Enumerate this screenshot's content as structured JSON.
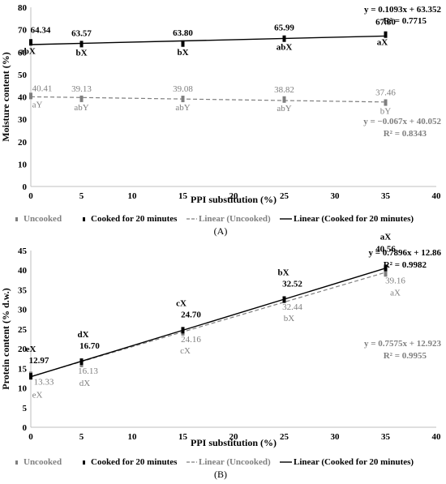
{
  "colors": {
    "uncooked": "#7f7f7f",
    "cooked": "#000000",
    "axis": "#bfbfbf",
    "grid": "#d9d9d9"
  },
  "chart_data": [
    {
      "type": "scatter",
      "panel_label": "(A)",
      "xlabel": "PPI substitution (%)",
      "ylabel": "Moisture content (%)",
      "xlim": [
        0,
        40
      ],
      "ylim": [
        0,
        80
      ],
      "xticks": [
        0,
        5,
        10,
        15,
        20,
        25,
        30,
        35,
        40
      ],
      "yticks": [
        0,
        10,
        20,
        30,
        40,
        50,
        60,
        70,
        80
      ],
      "grid": false,
      "legend_position": "bottom",
      "x": [
        0,
        5,
        15,
        25,
        35
      ],
      "series": [
        {
          "name": "Uncooked",
          "values": [
            40.41,
            39.13,
            39.08,
            38.82,
            37.46
          ],
          "data_labels": [
            "40.41",
            "39.13",
            "39.08",
            "38.82",
            "37.46"
          ],
          "letters": [
            "aY",
            "abY",
            "abY",
            "abY",
            "bY"
          ],
          "trendline_name": "Linear (Uncooked)",
          "trendline": {
            "slope": -0.067,
            "intercept": 40.052
          },
          "equation": "y = −0.067x + 40.052",
          "r2": "R² = 0.8343"
        },
        {
          "name": "Cooked for 20 minutes",
          "values": [
            64.34,
            63.57,
            63.8,
            65.99,
            67.8
          ],
          "data_labels": [
            "64.34",
            "63.57",
            "63.80",
            "65.99",
            "67.80"
          ],
          "letters": [
            "abX",
            "bX",
            "bX",
            "abX",
            "aX"
          ],
          "trendline_name": "Linear (Cooked for 20 minutes)",
          "trendline": {
            "slope": 0.1093,
            "intercept": 63.352
          },
          "equation": "y = 0.1093x + 63.352",
          "r2": "R² = 0.7715"
        }
      ]
    },
    {
      "type": "scatter",
      "panel_label": "(B)",
      "xlabel": "PPI substitution (%)",
      "ylabel": "Protein content (% d.w.)",
      "xlim": [
        0,
        40
      ],
      "ylim": [
        0,
        45
      ],
      "xticks": [
        0,
        5,
        10,
        15,
        20,
        25,
        30,
        35,
        40
      ],
      "yticks": [
        0,
        5,
        10,
        15,
        20,
        25,
        30,
        35,
        40,
        45
      ],
      "grid": false,
      "legend_position": "bottom",
      "x": [
        0,
        5,
        15,
        25,
        35
      ],
      "series": [
        {
          "name": "Uncooked",
          "values": [
            13.33,
            16.13,
            24.16,
            32.44,
            39.16
          ],
          "data_labels": [
            "13.33",
            "16.13",
            "24.16",
            "32.44",
            "39.16"
          ],
          "letters": [
            "eX",
            "dX",
            "cX",
            "bX",
            "aX"
          ],
          "trendline_name": "Linear (Uncooked)",
          "trendline": {
            "slope": 0.7575,
            "intercept": 12.923
          },
          "equation": "y = 0.7575x + 12.923",
          "r2": "R² = 0.9955"
        },
        {
          "name": "Cooked for 20 minutes",
          "values": [
            12.97,
            16.7,
            24.7,
            32.52,
            40.56
          ],
          "data_labels": [
            "12.97",
            "16.70",
            "24.70",
            "32.52",
            "40.56"
          ],
          "letters": [
            "eX",
            "dX",
            "cX",
            "bX",
            "aX"
          ],
          "trendline_name": "Linear (Cooked for 20 minutes)",
          "trendline": {
            "slope": 0.7896,
            "intercept": 12.86
          },
          "equation": "y = 0.7896x + 12.86",
          "r2": "R² = 0.9982"
        }
      ]
    }
  ]
}
